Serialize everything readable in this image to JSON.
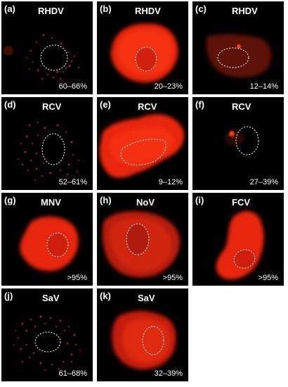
{
  "panels": [
    {
      "label": "(a)",
      "virus": "RHDV",
      "percentage": "60–66%"
    },
    {
      "label": "(b)",
      "virus": "RHDV",
      "percentage": "20–23%"
    },
    {
      "label": "(c)",
      "virus": "RHDV",
      "percentage": "12–14%"
    },
    {
      "label": "(d)",
      "virus": "RCV",
      "percentage": "52–61%"
    },
    {
      "label": "(e)",
      "virus": "RCV",
      "percentage": "9–12%"
    },
    {
      "label": "(f)",
      "virus": "RCV",
      "percentage": "27–39%"
    },
    {
      "label": "(g)",
      "virus": "MNV",
      "percentage": ">95%"
    },
    {
      "label": "(h)",
      "virus": "NoV",
      "percentage": ">95%"
    },
    {
      "label": "(i)",
      "virus": "FCV",
      "percentage": ">95%"
    },
    {
      "label": "(j)",
      "virus": "SaV",
      "percentage": "61–68%"
    },
    {
      "label": "(k)",
      "virus": "SaV",
      "percentage": "32–39%"
    }
  ],
  "colors": {
    "fluorescence": "#ff2a10",
    "background": "#000000",
    "nucleus_outline": "#ffffff"
  }
}
